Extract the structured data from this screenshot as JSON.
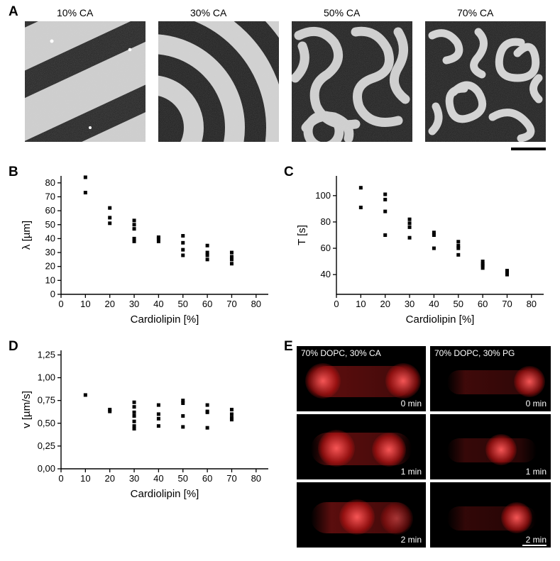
{
  "panelA": {
    "label": "A",
    "columns": [
      "10% CA",
      "30% CA",
      "50% CA",
      "70% CA"
    ],
    "label_fontsize": 14,
    "scalebar_color": "#000000"
  },
  "panelB": {
    "label": "B",
    "type": "scatter",
    "xlabel": "Cardiolipin [%]",
    "ylabel": "λ [µm]",
    "xlim": [
      0,
      85
    ],
    "ylim": [
      0,
      85
    ],
    "xticks": [
      0,
      10,
      20,
      30,
      40,
      50,
      60,
      70,
      80
    ],
    "yticks": [
      0,
      10,
      20,
      30,
      40,
      50,
      60,
      70,
      80
    ],
    "label_fontsize": 15,
    "tick_fontsize": 13,
    "point_color": "#000000",
    "marker_size": 5,
    "data": [
      [
        10,
        73
      ],
      [
        10,
        84
      ],
      [
        20,
        62
      ],
      [
        20,
        55
      ],
      [
        20,
        51
      ],
      [
        30,
        53
      ],
      [
        30,
        50
      ],
      [
        30,
        47
      ],
      [
        30,
        40
      ],
      [
        30,
        38
      ],
      [
        40,
        41
      ],
      [
        40,
        40
      ],
      [
        40,
        38
      ],
      [
        50,
        42
      ],
      [
        50,
        37
      ],
      [
        50,
        32
      ],
      [
        50,
        28
      ],
      [
        60,
        35
      ],
      [
        60,
        30
      ],
      [
        60,
        28
      ],
      [
        60,
        25
      ],
      [
        70,
        30
      ],
      [
        70,
        27
      ],
      [
        70,
        25
      ],
      [
        70,
        22
      ]
    ]
  },
  "panelC": {
    "label": "C",
    "type": "scatter",
    "xlabel": "Cardiolipin [%]",
    "ylabel": "T [s]",
    "xlim": [
      0,
      85
    ],
    "ylim": [
      25,
      115
    ],
    "xticks": [
      0,
      10,
      20,
      30,
      40,
      50,
      60,
      70,
      80
    ],
    "yticks": [
      40,
      60,
      80,
      100
    ],
    "label_fontsize": 15,
    "tick_fontsize": 13,
    "point_color": "#000000",
    "marker_size": 5,
    "data": [
      [
        10,
        106
      ],
      [
        10,
        91
      ],
      [
        20,
        101
      ],
      [
        20,
        97
      ],
      [
        20,
        88
      ],
      [
        20,
        70
      ],
      [
        30,
        82
      ],
      [
        30,
        79
      ],
      [
        30,
        76
      ],
      [
        30,
        68
      ],
      [
        40,
        72
      ],
      [
        40,
        70
      ],
      [
        40,
        60
      ],
      [
        50,
        65
      ],
      [
        50,
        62
      ],
      [
        50,
        60
      ],
      [
        50,
        55
      ],
      [
        60,
        50
      ],
      [
        60,
        48
      ],
      [
        60,
        47
      ],
      [
        60,
        45
      ],
      [
        70,
        43
      ],
      [
        70,
        42
      ],
      [
        70,
        40
      ]
    ]
  },
  "panelD": {
    "label": "D",
    "type": "scatter",
    "xlabel": "Cardiolipin [%]",
    "ylabel": "v [µm/s]",
    "xlim": [
      0,
      85
    ],
    "ylim": [
      0,
      1.3
    ],
    "xticks": [
      0,
      10,
      20,
      30,
      40,
      50,
      60,
      70,
      80
    ],
    "yticks": [
      0.0,
      0.25,
      0.5,
      0.75,
      1.0,
      1.25
    ],
    "ytick_labels": [
      "0,00",
      "0,25",
      "0,50",
      "0,75",
      "1,00",
      "1,25"
    ],
    "label_fontsize": 15,
    "tick_fontsize": 13,
    "point_color": "#000000",
    "marker_size": 5,
    "data": [
      [
        10,
        0.81
      ],
      [
        20,
        0.65
      ],
      [
        20,
        0.63
      ],
      [
        30,
        0.73
      ],
      [
        30,
        0.68
      ],
      [
        30,
        0.62
      ],
      [
        30,
        0.58
      ],
      [
        30,
        0.52
      ],
      [
        30,
        0.47
      ],
      [
        30,
        0.44
      ],
      [
        40,
        0.7
      ],
      [
        40,
        0.6
      ],
      [
        40,
        0.55
      ],
      [
        40,
        0.47
      ],
      [
        50,
        0.75
      ],
      [
        50,
        0.72
      ],
      [
        50,
        0.58
      ],
      [
        50,
        0.46
      ],
      [
        60,
        0.7
      ],
      [
        60,
        0.63
      ],
      [
        60,
        0.62
      ],
      [
        60,
        0.45
      ],
      [
        70,
        0.65
      ],
      [
        70,
        0.6
      ],
      [
        70,
        0.56
      ],
      [
        70,
        0.54
      ]
    ]
  },
  "panelE": {
    "label": "E",
    "left_title": "70% DOPC, 30% CA",
    "right_title": "70% DOPC, 30% PG",
    "times": [
      "0 min",
      "1 min",
      "2 min"
    ],
    "title_fontsize": 12,
    "time_fontsize": 12,
    "scalebar_color": "#ffffff"
  },
  "colors": {
    "background": "#ffffff",
    "text": "#000000",
    "point": "#000000",
    "rod_red": "#e63030"
  }
}
